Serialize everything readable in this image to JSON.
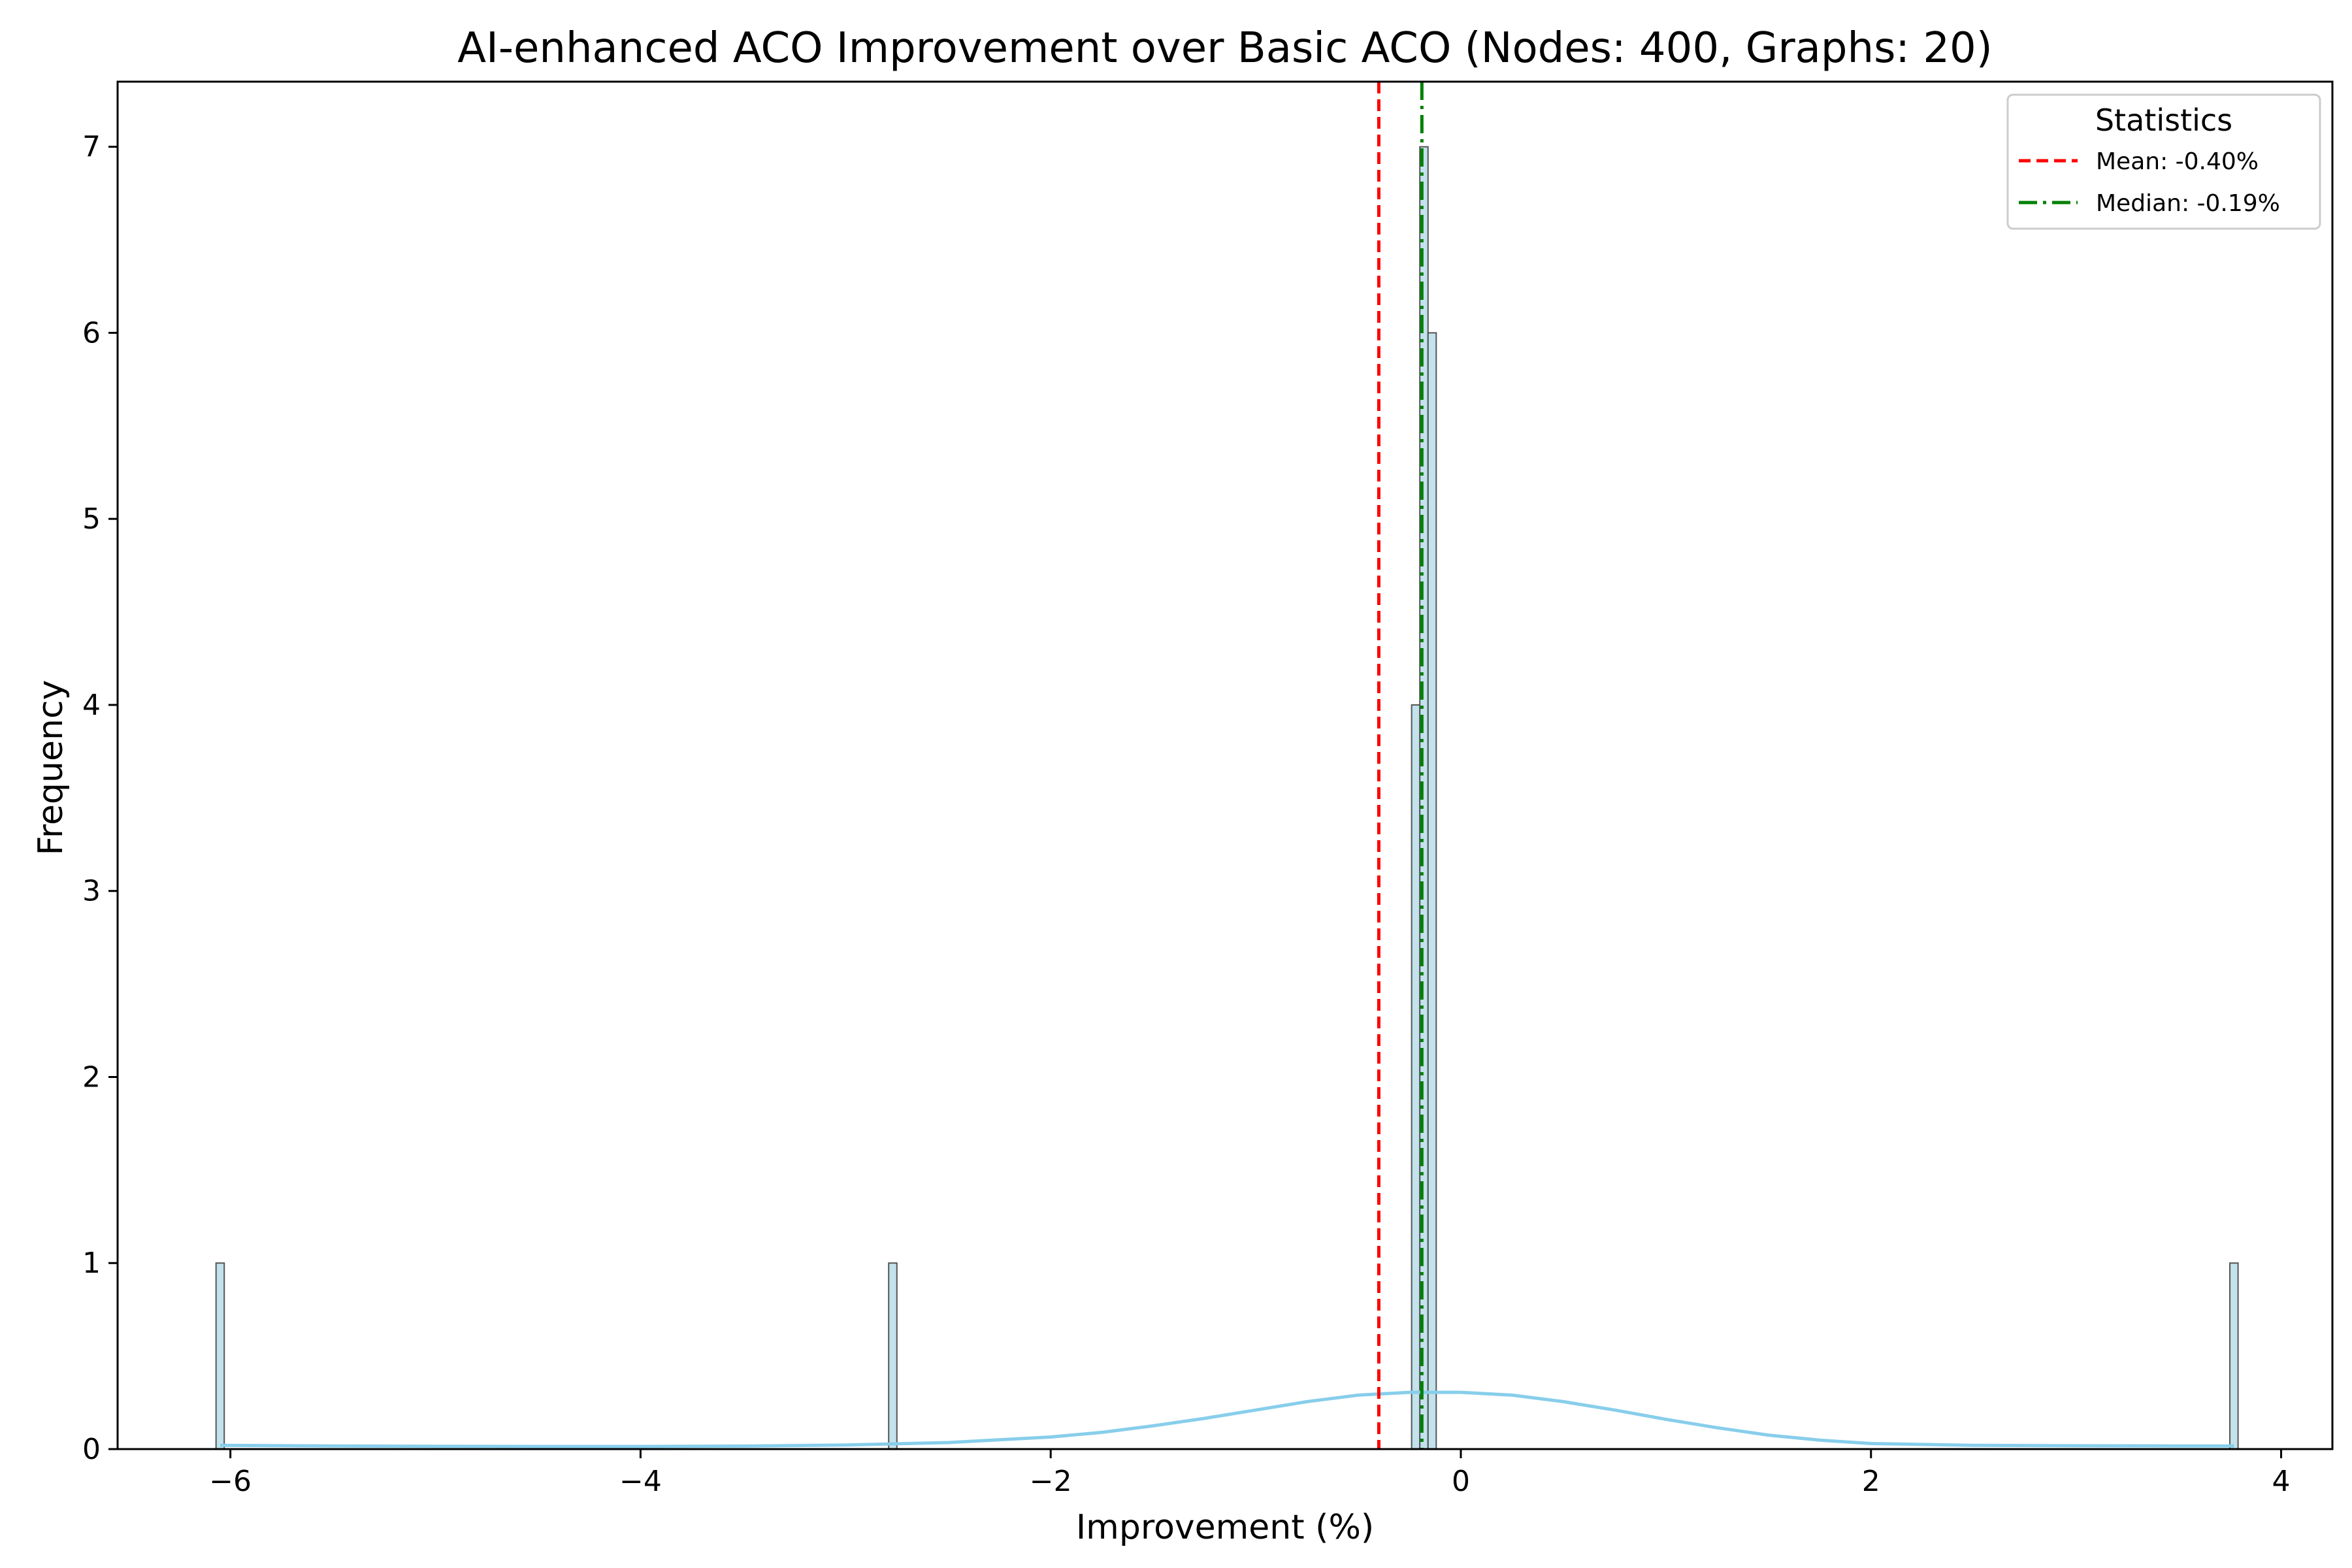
{
  "chart_data": {
    "type": "bar",
    "title": "AI-enhanced ACO Improvement over Basic ACO (Nodes: 400, Graphs: 20)",
    "xlabel": "Improvement (%)",
    "ylabel": "Frequency",
    "xlim": [
      -6.55,
      4.25
    ],
    "ylim": [
      0,
      7.35
    ],
    "xticks": [
      -6,
      -4,
      -2,
      0,
      2,
      4
    ],
    "yticks": [
      0,
      1,
      2,
      3,
      4,
      5,
      6,
      7
    ],
    "xtick_labels": [
      "−6",
      "−4",
      "−2",
      "0",
      "2",
      "4"
    ],
    "ytick_labels": [
      "0",
      "1",
      "2",
      "3",
      "4",
      "5",
      "6",
      "7"
    ],
    "grid": false,
    "bar_color": "#add8e6",
    "bar_edge_color": "#555555",
    "bins": [
      {
        "x0": -6.07,
        "x1": -6.03,
        "count": 1
      },
      {
        "x0": -2.79,
        "x1": -2.75,
        "count": 1
      },
      {
        "x0": -0.24,
        "x1": -0.2,
        "count": 4
      },
      {
        "x0": -0.2,
        "x1": -0.16,
        "count": 7
      },
      {
        "x0": -0.16,
        "x1": -0.12,
        "count": 6
      },
      {
        "x0": 3.75,
        "x1": 3.79,
        "count": 1
      }
    ],
    "kde": {
      "color": "#87ceeb",
      "x": [
        -6.05,
        -5.5,
        -5.0,
        -4.5,
        -4.0,
        -3.5,
        -3.0,
        -2.5,
        -2.0,
        -1.75,
        -1.5,
        -1.25,
        -1.0,
        -0.75,
        -0.5,
        -0.25,
        0.0,
        0.25,
        0.5,
        0.75,
        1.0,
        1.25,
        1.5,
        1.75,
        2.0,
        2.5,
        3.0,
        3.5,
        3.77
      ],
      "y": [
        0.02,
        0.017,
        0.015,
        0.014,
        0.014,
        0.016,
        0.022,
        0.035,
        0.065,
        0.09,
        0.125,
        0.165,
        0.21,
        0.255,
        0.29,
        0.305,
        0.305,
        0.29,
        0.255,
        0.21,
        0.16,
        0.115,
        0.075,
        0.048,
        0.03,
        0.02,
        0.018,
        0.017,
        0.017
      ]
    },
    "reference_lines": [
      {
        "label": "Mean: -0.40%",
        "x": -0.4,
        "color": "#ff0000",
        "style": "dashed"
      },
      {
        "label": "Median: -0.19%",
        "x": -0.19,
        "color": "#008000",
        "style": "dashdot"
      }
    ],
    "legend": {
      "title": "Statistics",
      "position": "top-right"
    }
  }
}
